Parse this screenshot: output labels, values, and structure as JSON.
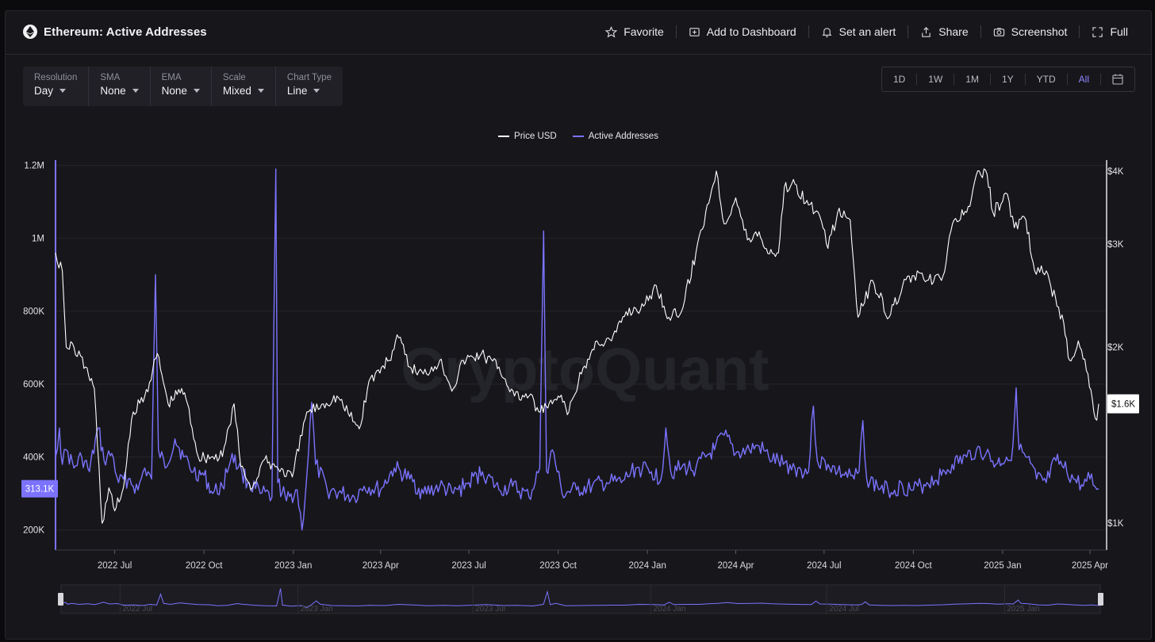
{
  "header": {
    "title": "Ethereum: Active Addresses",
    "actions": {
      "favorite": "Favorite",
      "add_dashboard": "Add to Dashboard",
      "alert": "Set an alert",
      "share": "Share",
      "screenshot": "Screenshot",
      "full": "Full"
    }
  },
  "controls": {
    "resolution": {
      "label": "Resolution",
      "value": "Day"
    },
    "sma": {
      "label": "SMA",
      "value": "None"
    },
    "ema": {
      "label": "EMA",
      "value": "None"
    },
    "scale": {
      "label": "Scale",
      "value": "Mixed"
    },
    "chart_type": {
      "label": "Chart Type",
      "value": "Line"
    }
  },
  "range_buttons": {
    "d1": "1D",
    "w1": "1W",
    "m1": "1M",
    "y1": "1Y",
    "ytd": "YTD",
    "all": "All",
    "active": "All"
  },
  "watermark": "CryptoQuant",
  "colors": {
    "price": "#ffffff",
    "active_addresses": "#7b73ff",
    "background": "#17171b",
    "grid": "#25252b",
    "accent": "#8f86ff"
  },
  "chart_data": {
    "type": "line",
    "legend_position": "top-center",
    "grid": true,
    "x_axis": {
      "ticks": [
        "2022 Jul",
        "2022 Oct",
        "2023 Jan",
        "2023 Apr",
        "2023 Jul",
        "2023 Oct",
        "2024 Jan",
        "2024 Apr",
        "2024 Jul",
        "2024 Oct",
        "2025 Jan",
        "2025 Apr"
      ],
      "range": [
        "2022-05-01",
        "2025-04-10"
      ]
    },
    "y_left": {
      "ticks": [
        "200K",
        "400K",
        "600K",
        "800K",
        "1M",
        "1.2M"
      ],
      "range": [
        145000,
        1210000
      ]
    },
    "y_right": {
      "ticks": [
        "$1K",
        "$2K",
        "$3K",
        "$4K"
      ],
      "scale": "log",
      "range": [
        900,
        4150
      ]
    },
    "current_labels": {
      "left": "313.1K",
      "right": "$1.6K"
    },
    "navigator": {
      "ticks": [
        "2022 Jul",
        "2023 Jan",
        "2023 Jul",
        "2024 Jan",
        "2024 Jul",
        "2025 Jan"
      ]
    },
    "series": [
      {
        "name": "Price USD",
        "axis": "right",
        "points": [
          [
            "2022-05-01",
            2900
          ],
          [
            "2022-05-08",
            2700
          ],
          [
            "2022-05-12",
            2000
          ],
          [
            "2022-05-20",
            2000
          ],
          [
            "2022-06-01",
            1850
          ],
          [
            "2022-06-10",
            1700
          ],
          [
            "2022-06-18",
            1000
          ],
          [
            "2022-06-25",
            1150
          ],
          [
            "2022-07-01",
            1050
          ],
          [
            "2022-07-10",
            1150
          ],
          [
            "2022-07-20",
            1550
          ],
          [
            "2022-08-01",
            1650
          ],
          [
            "2022-08-14",
            1950
          ],
          [
            "2022-08-25",
            1600
          ],
          [
            "2022-09-08",
            1700
          ],
          [
            "2022-09-14",
            1600
          ],
          [
            "2022-09-25",
            1300
          ],
          [
            "2022-10-10",
            1300
          ],
          [
            "2022-10-20",
            1300
          ],
          [
            "2022-11-01",
            1600
          ],
          [
            "2022-11-08",
            1250
          ],
          [
            "2022-11-20",
            1150
          ],
          [
            "2022-12-01",
            1280
          ],
          [
            "2022-12-15",
            1250
          ],
          [
            "2022-12-31",
            1200
          ],
          [
            "2023-01-15",
            1550
          ],
          [
            "2023-02-01",
            1600
          ],
          [
            "2023-02-15",
            1650
          ],
          [
            "2023-03-10",
            1450
          ],
          [
            "2023-03-20",
            1750
          ],
          [
            "2023-04-10",
            1900
          ],
          [
            "2023-04-18",
            2100
          ],
          [
            "2023-05-01",
            1850
          ],
          [
            "2023-05-15",
            1800
          ],
          [
            "2023-06-01",
            1900
          ],
          [
            "2023-06-15",
            1700
          ],
          [
            "2023-06-25",
            1900
          ],
          [
            "2023-07-14",
            1950
          ],
          [
            "2023-08-01",
            1850
          ],
          [
            "2023-08-17",
            1650
          ],
          [
            "2023-09-01",
            1650
          ],
          [
            "2023-09-11",
            1550
          ],
          [
            "2023-09-25",
            1600
          ],
          [
            "2023-10-01",
            1650
          ],
          [
            "2023-10-12",
            1550
          ],
          [
            "2023-10-25",
            1800
          ],
          [
            "2023-11-10",
            2050
          ],
          [
            "2023-11-25",
            2050
          ],
          [
            "2023-12-10",
            2300
          ],
          [
            "2023-12-28",
            2350
          ],
          [
            "2024-01-10",
            2550
          ],
          [
            "2024-01-23",
            2250
          ],
          [
            "2024-02-05",
            2300
          ],
          [
            "2024-02-20",
            2900
          ],
          [
            "2024-03-01",
            3400
          ],
          [
            "2024-03-12",
            4000
          ],
          [
            "2024-03-20",
            3250
          ],
          [
            "2024-04-01",
            3600
          ],
          [
            "2024-04-13",
            3050
          ],
          [
            "2024-04-25",
            3150
          ],
          [
            "2024-05-01",
            2950
          ],
          [
            "2024-05-15",
            2900
          ],
          [
            "2024-05-21",
            3750
          ],
          [
            "2024-06-01",
            3800
          ],
          [
            "2024-06-15",
            3500
          ],
          [
            "2024-06-25",
            3400
          ],
          [
            "2024-07-05",
            2950
          ],
          [
            "2024-07-15",
            3400
          ],
          [
            "2024-07-28",
            3300
          ],
          [
            "2024-08-05",
            2250
          ],
          [
            "2024-08-20",
            2600
          ],
          [
            "2024-09-06",
            2250
          ],
          [
            "2024-09-20",
            2550
          ],
          [
            "2024-09-30",
            2650
          ],
          [
            "2024-10-15",
            2600
          ],
          [
            "2024-10-30",
            2600
          ],
          [
            "2024-11-12",
            3300
          ],
          [
            "2024-11-25",
            3400
          ],
          [
            "2024-12-08",
            4000
          ],
          [
            "2024-12-16",
            3950
          ],
          [
            "2024-12-22",
            3400
          ],
          [
            "2025-01-06",
            3650
          ],
          [
            "2025-01-13",
            3200
          ],
          [
            "2025-01-25",
            3300
          ],
          [
            "2025-02-03",
            2700
          ],
          [
            "2025-02-15",
            2700
          ],
          [
            "2025-02-26",
            2350
          ],
          [
            "2025-03-05",
            2200
          ],
          [
            "2025-03-11",
            1900
          ],
          [
            "2025-03-20",
            2050
          ],
          [
            "2025-03-30",
            1800
          ],
          [
            "2025-04-05",
            1550
          ],
          [
            "2025-04-08",
            1500
          ],
          [
            "2025-04-10",
            1600
          ]
        ]
      },
      {
        "name": "Active Addresses",
        "axis": "left",
        "points": [
          [
            "2022-05-01",
            400000
          ],
          [
            "2022-05-05",
            480000
          ],
          [
            "2022-05-08",
            380000
          ],
          [
            "2022-05-12",
            420000
          ],
          [
            "2022-05-20",
            370000
          ],
          [
            "2022-05-28",
            400000
          ],
          [
            "2022-06-05",
            360000
          ],
          [
            "2022-06-14",
            480000
          ],
          [
            "2022-06-20",
            390000
          ],
          [
            "2022-06-28",
            410000
          ],
          [
            "2022-07-05",
            330000
          ],
          [
            "2022-07-15",
            340000
          ],
          [
            "2022-07-25",
            310000
          ],
          [
            "2022-08-01",
            370000
          ],
          [
            "2022-08-08",
            340000
          ],
          [
            "2022-08-12",
            900000
          ],
          [
            "2022-08-15",
            420000
          ],
          [
            "2022-08-22",
            370000
          ],
          [
            "2022-09-01",
            450000
          ],
          [
            "2022-09-10",
            400000
          ],
          [
            "2022-09-20",
            360000
          ],
          [
            "2022-10-01",
            350000
          ],
          [
            "2022-10-10",
            300000
          ],
          [
            "2022-10-20",
            320000
          ],
          [
            "2022-10-30",
            410000
          ],
          [
            "2022-11-05",
            370000
          ],
          [
            "2022-11-09",
            360000
          ],
          [
            "2022-11-15",
            330000
          ],
          [
            "2022-11-28",
            300000
          ],
          [
            "2022-12-10",
            290000
          ],
          [
            "2022-12-14",
            1190000
          ],
          [
            "2022-12-16",
            330000
          ],
          [
            "2022-12-25",
            280000
          ],
          [
            "2023-01-05",
            310000
          ],
          [
            "2023-01-10",
            200000
          ],
          [
            "2023-01-15",
            350000
          ],
          [
            "2023-01-20",
            550000
          ],
          [
            "2023-01-24",
            380000
          ],
          [
            "2023-02-05",
            310000
          ],
          [
            "2023-02-20",
            300000
          ],
          [
            "2023-03-05",
            290000
          ],
          [
            "2023-03-15",
            320000
          ],
          [
            "2023-04-01",
            310000
          ],
          [
            "2023-04-15",
            370000
          ],
          [
            "2023-05-01",
            340000
          ],
          [
            "2023-05-15",
            300000
          ],
          [
            "2023-06-01",
            320000
          ],
          [
            "2023-06-15",
            300000
          ],
          [
            "2023-07-01",
            330000
          ],
          [
            "2023-07-15",
            360000
          ],
          [
            "2023-08-01",
            310000
          ],
          [
            "2023-08-15",
            320000
          ],
          [
            "2023-09-01",
            290000
          ],
          [
            "2023-09-12",
            370000
          ],
          [
            "2023-09-16",
            1020000
          ],
          [
            "2023-09-19",
            360000
          ],
          [
            "2023-09-25",
            420000
          ],
          [
            "2023-10-05",
            300000
          ],
          [
            "2023-10-20",
            310000
          ],
          [
            "2023-11-05",
            320000
          ],
          [
            "2023-11-20",
            330000
          ],
          [
            "2023-12-05",
            330000
          ],
          [
            "2023-12-20",
            370000
          ],
          [
            "2024-01-05",
            360000
          ],
          [
            "2024-01-15",
            340000
          ],
          [
            "2024-01-20",
            480000
          ],
          [
            "2024-01-25",
            360000
          ],
          [
            "2024-02-05",
            370000
          ],
          [
            "2024-02-20",
            370000
          ],
          [
            "2024-03-01",
            400000
          ],
          [
            "2024-03-10",
            420000
          ],
          [
            "2024-03-20",
            460000
          ],
          [
            "2024-04-01",
            410000
          ],
          [
            "2024-04-15",
            420000
          ],
          [
            "2024-04-25",
            430000
          ],
          [
            "2024-05-05",
            400000
          ],
          [
            "2024-05-20",
            380000
          ],
          [
            "2024-06-01",
            370000
          ],
          [
            "2024-06-15",
            360000
          ],
          [
            "2024-06-20",
            540000
          ],
          [
            "2024-06-24",
            390000
          ],
          [
            "2024-07-05",
            380000
          ],
          [
            "2024-07-15",
            360000
          ],
          [
            "2024-08-01",
            340000
          ],
          [
            "2024-08-06",
            360000
          ],
          [
            "2024-08-10",
            500000
          ],
          [
            "2024-08-14",
            340000
          ],
          [
            "2024-08-25",
            320000
          ],
          [
            "2024-09-05",
            310000
          ],
          [
            "2024-09-20",
            320000
          ],
          [
            "2024-10-01",
            310000
          ],
          [
            "2024-10-15",
            330000
          ],
          [
            "2024-10-30",
            350000
          ],
          [
            "2024-11-10",
            380000
          ],
          [
            "2024-11-25",
            400000
          ],
          [
            "2024-12-05",
            420000
          ],
          [
            "2024-12-15",
            410000
          ],
          [
            "2024-12-25",
            380000
          ],
          [
            "2025-01-05",
            400000
          ],
          [
            "2025-01-10",
            390000
          ],
          [
            "2025-01-15",
            590000
          ],
          [
            "2025-01-18",
            420000
          ],
          [
            "2025-01-25",
            400000
          ],
          [
            "2025-02-05",
            340000
          ],
          [
            "2025-02-15",
            330000
          ],
          [
            "2025-02-25",
            390000
          ],
          [
            "2025-03-05",
            370000
          ],
          [
            "2025-03-15",
            340000
          ],
          [
            "2025-03-25",
            320000
          ],
          [
            "2025-04-01",
            340000
          ],
          [
            "2025-04-06",
            320000
          ],
          [
            "2025-04-10",
            313100
          ]
        ]
      }
    ]
  }
}
